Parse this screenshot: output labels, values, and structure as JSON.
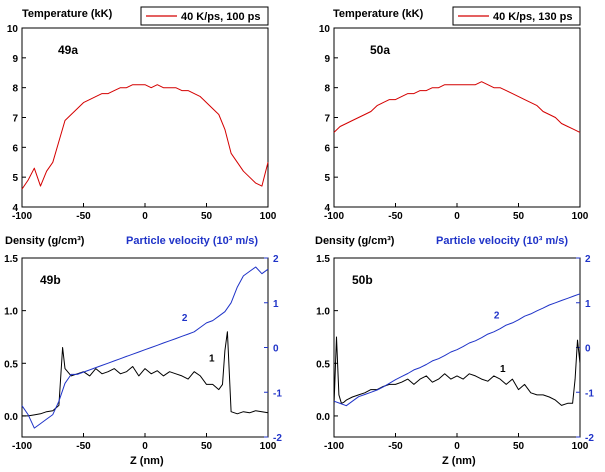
{
  "colors": {
    "temperature": "#d40000",
    "density": "#000000",
    "velocity": "#1f33c8"
  },
  "chart_data": [
    {
      "id": "49a",
      "type": "line",
      "panel_label": "49a",
      "ylabel": "Temperature (kK)",
      "xlim": [
        -100,
        100
      ],
      "ylim": [
        4,
        10
      ],
      "xticks": [
        -100,
        -50,
        0,
        50,
        100
      ],
      "yticks": [
        4,
        5,
        6,
        7,
        8,
        9,
        10
      ],
      "legend": "40 K/ps, 100 ps",
      "series": [
        {
          "name": "40 K/ps, 100 ps",
          "color_key": "temperature",
          "x": [
            -100,
            -95,
            -90,
            -85,
            -80,
            -75,
            -70,
            -65,
            -60,
            -55,
            -50,
            -45,
            -40,
            -35,
            -30,
            -25,
            -20,
            -15,
            -10,
            -5,
            0,
            5,
            10,
            15,
            20,
            25,
            30,
            35,
            40,
            45,
            50,
            55,
            60,
            65,
            70,
            75,
            80,
            85,
            90,
            95,
            100
          ],
          "y": [
            4.6,
            4.9,
            5.3,
            4.7,
            5.2,
            5.5,
            6.2,
            6.9,
            7.1,
            7.3,
            7.5,
            7.6,
            7.7,
            7.8,
            7.8,
            7.9,
            8.0,
            8.0,
            8.1,
            8.1,
            8.1,
            8.0,
            8.1,
            8.0,
            8.0,
            8.0,
            7.9,
            7.9,
            7.8,
            7.7,
            7.5,
            7.3,
            7.1,
            6.6,
            5.8,
            5.5,
            5.2,
            5.0,
            4.8,
            4.7,
            5.5
          ]
        }
      ]
    },
    {
      "id": "50a",
      "type": "line",
      "panel_label": "50a",
      "ylabel": "Temperature (kK)",
      "xlim": [
        -100,
        100
      ],
      "ylim": [
        4,
        10
      ],
      "xticks": [
        -100,
        -50,
        0,
        50,
        100
      ],
      "yticks": [
        4,
        5,
        6,
        7,
        8,
        9,
        10
      ],
      "legend": "40 K/ps, 130 ps",
      "series": [
        {
          "name": "40 K/ps, 130 ps",
          "color_key": "temperature",
          "x": [
            -100,
            -95,
            -90,
            -85,
            -80,
            -75,
            -70,
            -65,
            -60,
            -55,
            -50,
            -45,
            -40,
            -35,
            -30,
            -25,
            -20,
            -15,
            -10,
            -5,
            0,
            5,
            10,
            15,
            20,
            25,
            30,
            35,
            40,
            45,
            50,
            55,
            60,
            65,
            70,
            75,
            80,
            85,
            90,
            95,
            100
          ],
          "y": [
            6.5,
            6.7,
            6.8,
            6.9,
            7.0,
            7.1,
            7.2,
            7.4,
            7.5,
            7.6,
            7.6,
            7.7,
            7.8,
            7.8,
            7.9,
            7.9,
            8.0,
            8.0,
            8.1,
            8.1,
            8.1,
            8.1,
            8.1,
            8.1,
            8.2,
            8.1,
            8.0,
            8.0,
            7.9,
            7.8,
            7.7,
            7.6,
            7.5,
            7.4,
            7.2,
            7.1,
            7.0,
            6.8,
            6.7,
            6.6,
            6.5
          ]
        }
      ]
    },
    {
      "id": "49b",
      "type": "line",
      "panel_label": "49b",
      "xlabel": "Z (nm)",
      "ylabel": "Density (g/cm³)",
      "y2label": "Particle velocity (10³ m/s)",
      "xlim": [
        -100,
        100
      ],
      "ylim": [
        -0.2,
        1.5
      ],
      "y2lim": [
        -2,
        2
      ],
      "xticks": [
        -100,
        -50,
        0,
        50,
        100
      ],
      "yticks": [
        0.0,
        0.5,
        1.0,
        1.5
      ],
      "y2ticks": [
        -2,
        -1,
        0,
        1,
        2
      ],
      "series": [
        {
          "name": "1",
          "axis": "left",
          "color_key": "density",
          "x": [
            -100,
            -95,
            -90,
            -85,
            -80,
            -75,
            -70,
            -67,
            -65,
            -60,
            -55,
            -50,
            -45,
            -40,
            -35,
            -30,
            -25,
            -20,
            -15,
            -10,
            -5,
            0,
            5,
            10,
            15,
            20,
            25,
            30,
            35,
            40,
            45,
            50,
            55,
            60,
            63,
            65,
            67,
            70,
            75,
            80,
            85,
            90,
            95,
            100
          ],
          "y": [
            0.0,
            0.0,
            0.01,
            0.02,
            0.04,
            0.05,
            0.1,
            0.65,
            0.45,
            0.38,
            0.4,
            0.42,
            0.38,
            0.45,
            0.4,
            0.42,
            0.45,
            0.4,
            0.42,
            0.47,
            0.38,
            0.45,
            0.4,
            0.43,
            0.38,
            0.42,
            0.4,
            0.38,
            0.35,
            0.42,
            0.38,
            0.3,
            0.3,
            0.25,
            0.3,
            0.62,
            0.8,
            0.04,
            0.02,
            0.04,
            0.03,
            0.05,
            0.04,
            0.03
          ]
        },
        {
          "name": "2",
          "axis": "right",
          "color_key": "velocity",
          "x": [
            -100,
            -95,
            -90,
            -85,
            -80,
            -75,
            -70,
            -65,
            -60,
            -55,
            -50,
            -45,
            -40,
            -35,
            -30,
            -25,
            -20,
            -15,
            -10,
            -5,
            0,
            5,
            10,
            15,
            20,
            25,
            30,
            35,
            40,
            45,
            50,
            55,
            60,
            65,
            70,
            75,
            80,
            85,
            90,
            95,
            100
          ],
          "y": [
            -1.3,
            -1.5,
            -1.8,
            -1.7,
            -1.6,
            -1.5,
            -1.2,
            -0.8,
            -0.6,
            -0.6,
            -0.55,
            -0.5,
            -0.45,
            -0.4,
            -0.35,
            -0.3,
            -0.25,
            -0.2,
            -0.15,
            -0.1,
            -0.05,
            0.0,
            0.05,
            0.1,
            0.15,
            0.2,
            0.25,
            0.3,
            0.35,
            0.45,
            0.55,
            0.6,
            0.7,
            0.8,
            1.0,
            1.35,
            1.6,
            1.7,
            1.8,
            1.65,
            1.75
          ]
        }
      ]
    },
    {
      "id": "50b",
      "type": "line",
      "panel_label": "50b",
      "xlabel": "Z (nm)",
      "ylabel": "Density (g/cm³)",
      "y2label": "Particle velocity (10³ m/s)",
      "xlim": [
        -100,
        100
      ],
      "ylim": [
        -0.2,
        1.5
      ],
      "y2lim": [
        -2,
        2
      ],
      "xticks": [
        -100,
        -50,
        0,
        50,
        100
      ],
      "yticks": [
        0.0,
        0.5,
        1.0,
        1.5
      ],
      "y2ticks": [
        -2,
        -1,
        0,
        1,
        2
      ],
      "series": [
        {
          "name": "1",
          "axis": "left",
          "color_key": "density",
          "x": [
            -100,
            -98,
            -96,
            -94,
            -92,
            -90,
            -85,
            -80,
            -75,
            -70,
            -65,
            -60,
            -55,
            -50,
            -45,
            -40,
            -35,
            -30,
            -25,
            -20,
            -15,
            -10,
            -5,
            0,
            5,
            10,
            15,
            20,
            25,
            30,
            35,
            40,
            45,
            50,
            55,
            60,
            65,
            70,
            75,
            80,
            85,
            90,
            94,
            96,
            98,
            100
          ],
          "y": [
            0.1,
            0.75,
            0.2,
            0.12,
            0.13,
            0.15,
            0.18,
            0.2,
            0.22,
            0.25,
            0.25,
            0.28,
            0.3,
            0.3,
            0.32,
            0.35,
            0.3,
            0.35,
            0.38,
            0.32,
            0.35,
            0.4,
            0.35,
            0.38,
            0.35,
            0.4,
            0.38,
            0.35,
            0.33,
            0.38,
            0.35,
            0.3,
            0.35,
            0.25,
            0.3,
            0.22,
            0.2,
            0.2,
            0.18,
            0.15,
            0.1,
            0.12,
            0.12,
            0.35,
            0.72,
            0.5
          ]
        },
        {
          "name": "2",
          "axis": "right",
          "color_key": "velocity",
          "x": [
            -100,
            -95,
            -90,
            -85,
            -80,
            -75,
            -70,
            -65,
            -60,
            -55,
            -50,
            -45,
            -40,
            -35,
            -30,
            -25,
            -20,
            -15,
            -10,
            -5,
            0,
            5,
            10,
            15,
            20,
            25,
            30,
            35,
            40,
            45,
            50,
            55,
            60,
            65,
            70,
            75,
            80,
            85,
            90,
            95,
            100
          ],
          "y": [
            -1.2,
            -1.25,
            -1.3,
            -1.2,
            -1.1,
            -1.05,
            -1.0,
            -0.95,
            -0.88,
            -0.8,
            -0.72,
            -0.65,
            -0.58,
            -0.5,
            -0.45,
            -0.38,
            -0.3,
            -0.25,
            -0.18,
            -0.1,
            -0.05,
            0.02,
            0.1,
            0.15,
            0.22,
            0.3,
            0.35,
            0.42,
            0.5,
            0.55,
            0.62,
            0.7,
            0.75,
            0.82,
            0.88,
            0.95,
            1.0,
            1.05,
            1.1,
            1.15,
            1.2
          ]
        }
      ]
    }
  ]
}
